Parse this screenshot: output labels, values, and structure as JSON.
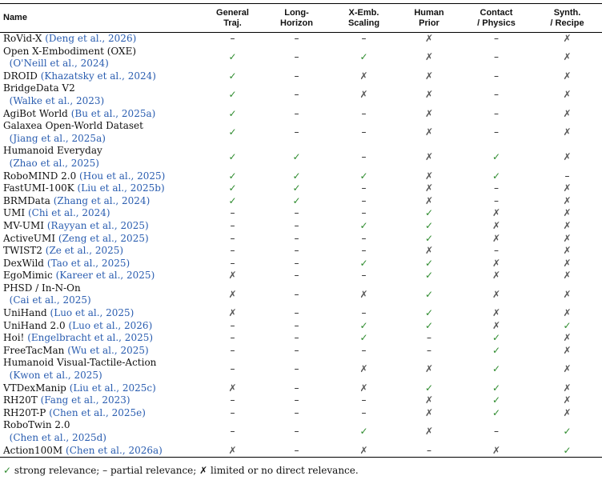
{
  "header": {
    "name": "Name",
    "columns": [
      {
        "line1": "General",
        "line2": "Traj."
      },
      {
        "line1": "Long-",
        "line2": "Horizon"
      },
      {
        "line1": "X-Emb.",
        "line2": "Scaling"
      },
      {
        "line1": "Human",
        "line2": "Prior"
      },
      {
        "line1": "Contact",
        "line2": "/ Physics"
      },
      {
        "line1": "Synth.",
        "line2": "/ Recipe"
      }
    ]
  },
  "symbols": {
    "S": "✓",
    "P": "–",
    "N": "✗"
  },
  "colors": {
    "strong": "#2e8b2e",
    "citation": "#2a5db0"
  },
  "rows": [
    {
      "name": "RoVid-X",
      "line2": "",
      "cite": "(Deng et al., 2026)",
      "v": [
        "P",
        "P",
        "P",
        "N",
        "P",
        "N"
      ]
    },
    {
      "name": "Open X-Embodiment (OXE)",
      "line2": "(",
      "cite": "O'Neill et al., 2024)",
      "v": [
        "S",
        "P",
        "S",
        "N",
        "P",
        "N"
      ]
    },
    {
      "name": "DROID",
      "line2": "",
      "cite": "(Khazatsky et al., 2024)",
      "v": [
        "S",
        "P",
        "N",
        "N",
        "P",
        "N"
      ]
    },
    {
      "name": "BridgeData V2",
      "line2": "(",
      "cite": "Walke et al., 2023)",
      "v": [
        "S",
        "P",
        "N",
        "N",
        "P",
        "N"
      ]
    },
    {
      "name": "AgiBot World",
      "line2": "",
      "cite": "(Bu et al., 2025a)",
      "v": [
        "S",
        "P",
        "P",
        "N",
        "P",
        "N"
      ]
    },
    {
      "name": "Galaxea Open-World Dataset",
      "line2": "(",
      "cite": "Jiang et al., 2025a)",
      "v": [
        "S",
        "P",
        "P",
        "N",
        "P",
        "N"
      ]
    },
    {
      "name": "Humanoid Everyday",
      "line2": "(",
      "cite": "Zhao et al., 2025)",
      "v": [
        "S",
        "S",
        "P",
        "N",
        "S",
        "N"
      ]
    },
    {
      "name": "RoboMIND 2.0",
      "line2": "",
      "cite": "(Hou et al., 2025)",
      "v": [
        "S",
        "S",
        "S",
        "N",
        "S",
        "P"
      ]
    },
    {
      "name": "FastUMI-100K",
      "line2": "",
      "cite": "(Liu et al., 2025b)",
      "v": [
        "S",
        "S",
        "P",
        "N",
        "P",
        "N"
      ]
    },
    {
      "name": "BRMData",
      "line2": "",
      "cite": "(Zhang et al., 2024)",
      "v": [
        "S",
        "S",
        "P",
        "N",
        "P",
        "N"
      ]
    },
    {
      "name": "UMI",
      "line2": "",
      "cite": "(Chi et al., 2024)",
      "v": [
        "P",
        "P",
        "P",
        "S",
        "N",
        "N"
      ]
    },
    {
      "name": "MV-UMI",
      "line2": "",
      "cite": "(Rayyan et al., 2025)",
      "v": [
        "P",
        "P",
        "S",
        "S",
        "N",
        "N"
      ]
    },
    {
      "name": "ActiveUMI",
      "line2": "",
      "cite": "(Zeng et al., 2025)",
      "v": [
        "P",
        "P",
        "P",
        "S",
        "N",
        "N"
      ]
    },
    {
      "name": "TWIST2",
      "line2": "",
      "cite": "(Ze et al., 2025)",
      "v": [
        "P",
        "P",
        "P",
        "N",
        "P",
        "N"
      ]
    },
    {
      "name": "DexWild",
      "line2": "",
      "cite": "(Tao et al., 2025)",
      "v": [
        "P",
        "P",
        "S",
        "S",
        "N",
        "N"
      ]
    },
    {
      "name": "EgoMimic",
      "line2": "",
      "cite": "(Kareer et al., 2025)",
      "v": [
        "N",
        "P",
        "P",
        "S",
        "N",
        "N"
      ]
    },
    {
      "name": "PHSD / In-N-On",
      "line2": "(",
      "cite": "Cai et al., 2025)",
      "v": [
        "N",
        "P",
        "N",
        "S",
        "N",
        "N"
      ]
    },
    {
      "name": "UniHand",
      "line2": "",
      "cite": "(Luo et al., 2025)",
      "v": [
        "N",
        "P",
        "P",
        "S",
        "N",
        "N"
      ]
    },
    {
      "name": "UniHand 2.0",
      "line2": "",
      "cite": "(Luo et al., 2026)",
      "v": [
        "P",
        "P",
        "S",
        "S",
        "N",
        "S"
      ]
    },
    {
      "name": "Hoi!",
      "line2": "",
      "cite": "(Engelbracht et al., 2025)",
      "v": [
        "P",
        "P",
        "S",
        "P",
        "S",
        "N"
      ]
    },
    {
      "name": "FreeTacMan",
      "line2": "",
      "cite": "(Wu et al., 2025)",
      "v": [
        "P",
        "P",
        "P",
        "P",
        "S",
        "N"
      ]
    },
    {
      "name": "Humanoid Visual-Tactile-Action",
      "line2": "(",
      "cite": "Kwon et al., 2025)",
      "v": [
        "P",
        "P",
        "N",
        "N",
        "S",
        "N"
      ]
    },
    {
      "name": "VTDexManip",
      "line2": "",
      "cite": "(Liu et al., 2025c)",
      "v": [
        "N",
        "P",
        "N",
        "S",
        "S",
        "N"
      ]
    },
    {
      "name": "RH20T",
      "line2": "",
      "cite": "(Fang et al., 2023)",
      "v": [
        "P",
        "P",
        "P",
        "N",
        "S",
        "N"
      ]
    },
    {
      "name": "RH20T-P",
      "line2": "",
      "cite": "(Chen et al., 2025e)",
      "v": [
        "P",
        "P",
        "P",
        "N",
        "S",
        "N"
      ]
    },
    {
      "name": "RoboTwin 2.0",
      "line2": "(",
      "cite": "Chen et al., 2025d)",
      "v": [
        "P",
        "P",
        "S",
        "N",
        "P",
        "S"
      ]
    },
    {
      "name": "Action100M",
      "line2": "",
      "cite": "(Chen et al., 2026a)",
      "v": [
        "N",
        "P",
        "N",
        "P",
        "N",
        "S"
      ]
    }
  ],
  "legend": {
    "strong_symbol": "✓",
    "strong_text": " strong relevance; ",
    "partial_symbol": "–",
    "partial_text": " partial relevance; ",
    "none_symbol": "✗",
    "none_text": " limited or no direct relevance."
  }
}
